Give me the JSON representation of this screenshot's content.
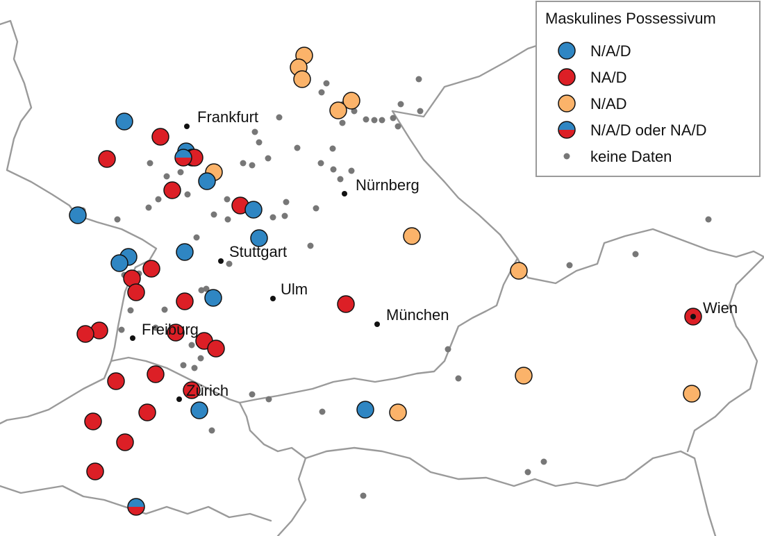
{
  "legend": {
    "title": "Maskulines Possessivum",
    "items": [
      {
        "key": "nad_sep",
        "label": "N/A/D"
      },
      {
        "key": "na_d",
        "label": "NA/D"
      },
      {
        "key": "n_ad",
        "label": "N/AD"
      },
      {
        "key": "mixed",
        "label": "N/A/D oder NA/D"
      },
      {
        "key": "none",
        "label": "keine Daten"
      }
    ]
  },
  "colors": {
    "nad_sep": "#2f86c3",
    "na_d": "#dc1f26",
    "n_ad": "#fbb36a",
    "none": "#777777",
    "city": "#111111",
    "border": "#9a9a9a"
  },
  "cities": [
    {
      "name": "Frankfurt"
    },
    {
      "name": "Nürnberg"
    },
    {
      "name": "Stuttgart"
    },
    {
      "name": "Ulm"
    },
    {
      "name": "München"
    },
    {
      "name": "Freiburg"
    },
    {
      "name": "Zürich"
    },
    {
      "name": "Wien"
    }
  ]
}
